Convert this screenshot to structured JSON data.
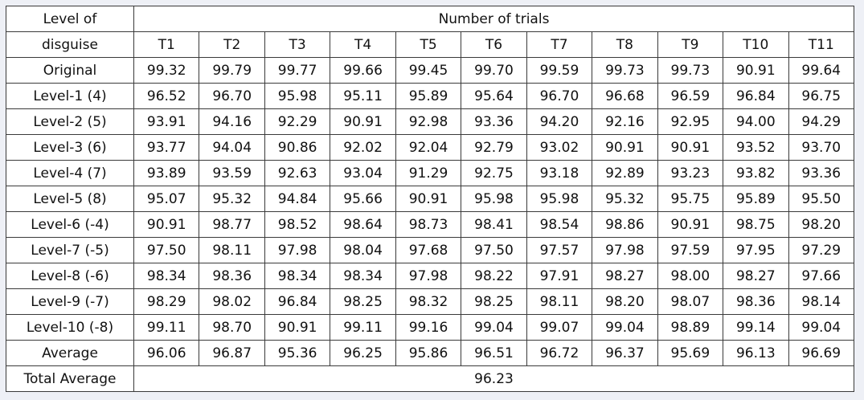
{
  "header": {
    "level_label_line1": "Level of",
    "level_label_line2": "disguise",
    "trials_label": "Number of trials",
    "trials": [
      "T1",
      "T2",
      "T3",
      "T4",
      "T5",
      "T6",
      "T7",
      "T8",
      "T9",
      "T10",
      "T11"
    ]
  },
  "rows": [
    {
      "label": "Original",
      "values": [
        "99.32",
        "99.79",
        "99.77",
        "99.66",
        "99.45",
        "99.70",
        "99.59",
        "99.73",
        "99.73",
        "90.91",
        "99.64"
      ]
    },
    {
      "label": "Level-1 (4)",
      "values": [
        "96.52",
        "96.70",
        "95.98",
        "95.11",
        "95.89",
        "95.64",
        "96.70",
        "96.68",
        "96.59",
        "96.84",
        "96.75"
      ]
    },
    {
      "label": "Level-2 (5)",
      "values": [
        "93.91",
        "94.16",
        "92.29",
        "90.91",
        "92.98",
        "93.36",
        "94.20",
        "92.16",
        "92.95",
        "94.00",
        "94.29"
      ]
    },
    {
      "label": "Level-3 (6)",
      "values": [
        "93.77",
        "94.04",
        "90.86",
        "92.02",
        "92.04",
        "92.79",
        "93.02",
        "90.91",
        "90.91",
        "93.52",
        "93.70"
      ]
    },
    {
      "label": "Level-4 (7)",
      "values": [
        "93.89",
        "93.59",
        "92.63",
        "93.04",
        "91.29",
        "92.75",
        "93.18",
        "92.89",
        "93.23",
        "93.82",
        "93.36"
      ]
    },
    {
      "label": "Level-5 (8)",
      "values": [
        "95.07",
        "95.32",
        "94.84",
        "95.66",
        "90.91",
        "95.98",
        "95.98",
        "95.32",
        "95.75",
        "95.89",
        "95.50"
      ]
    },
    {
      "label": "Level-6 (-4)",
      "values": [
        "90.91",
        "98.77",
        "98.52",
        "98.64",
        "98.73",
        "98.41",
        "98.54",
        "98.86",
        "90.91",
        "98.75",
        "98.20"
      ]
    },
    {
      "label": "Level-7 (-5)",
      "values": [
        "97.50",
        "98.11",
        "97.98",
        "98.04",
        "97.68",
        "97.50",
        "97.57",
        "97.98",
        "97.59",
        "97.95",
        "97.29"
      ]
    },
    {
      "label": "Level-8 (-6)",
      "values": [
        "98.34",
        "98.36",
        "98.34",
        "98.34",
        "97.98",
        "98.22",
        "97.91",
        "98.27",
        "98.00",
        "98.27",
        "97.66"
      ]
    },
    {
      "label": "Level-9 (-7)",
      "values": [
        "98.29",
        "98.02",
        "96.84",
        "98.25",
        "98.32",
        "98.25",
        "98.11",
        "98.20",
        "98.07",
        "98.36",
        "98.14"
      ]
    },
    {
      "label": "Level-10 (-8)",
      "values": [
        "99.11",
        "98.70",
        "90.91",
        "99.11",
        "99.16",
        "99.04",
        "99.07",
        "99.04",
        "98.89",
        "99.14",
        "99.04"
      ]
    }
  ],
  "average": {
    "label": "Average",
    "values": [
      "96.06",
      "96.87",
      "95.36",
      "96.25",
      "95.86",
      "96.51",
      "96.72",
      "96.37",
      "95.69",
      "96.13",
      "96.69"
    ]
  },
  "total": {
    "label": "Total Average",
    "value": "96.23"
  }
}
